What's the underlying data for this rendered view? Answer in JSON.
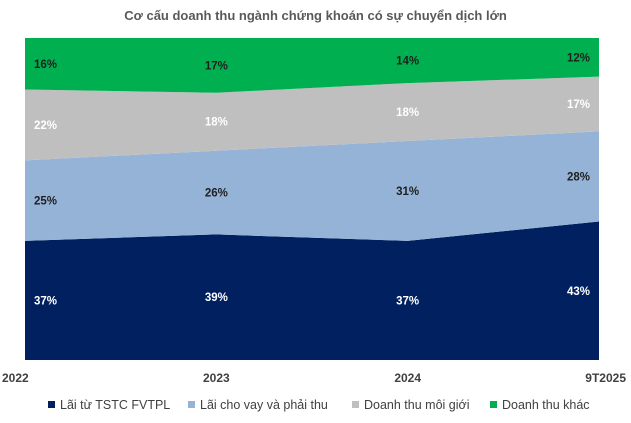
{
  "chart_data": {
    "type": "area",
    "stacked": "percent",
    "title": "Cơ cấu doanh thu ngành chứng khoán có sự chuyển dịch lớn",
    "xlabel": "",
    "ylabel": "",
    "ylim": [
      0,
      100
    ],
    "grid": false,
    "legend_position": "bottom",
    "categories": [
      "2022",
      "2023",
      "2024",
      "9T2025"
    ],
    "series": [
      {
        "name": "Lãi từ TSTC FVTPL",
        "color": "#002060",
        "values": [
          37,
          39,
          37,
          43
        ],
        "labels": [
          "37%",
          "39%",
          "37%",
          "43%"
        ]
      },
      {
        "name": "Lãi cho vay và phải thu",
        "color": "#95b3d7",
        "values": [
          25,
          26,
          31,
          28
        ],
        "labels": [
          "25%",
          "26%",
          "31%",
          "28%"
        ]
      },
      {
        "name": "Doanh thu môi giới",
        "color": "#bfbfbf",
        "values": [
          22,
          18,
          18,
          17
        ],
        "labels": [
          "22%",
          "18%",
          "18%",
          "17%"
        ]
      },
      {
        "name": "Doanh thu khác",
        "color": "#00b050",
        "values": [
          16,
          17,
          14,
          12
        ],
        "labels": [
          "16%",
          "17%",
          "14%",
          "12%"
        ]
      }
    ]
  }
}
